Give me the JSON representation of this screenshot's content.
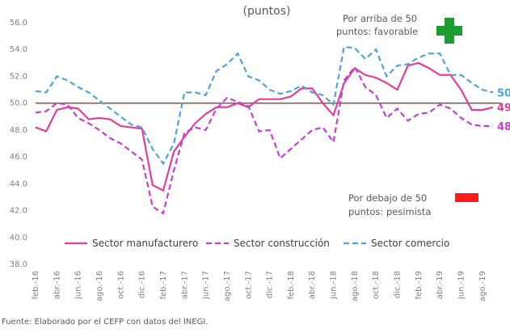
{
  "chart_data": {
    "type": "line",
    "title": "(puntos)",
    "annotations": [
      "Por arriba de 50",
      "puntos: favorable",
      "Por debajo de 50",
      "puntos: pesimista"
    ],
    "source": "Fuente: Elaborado por el CEFP con datos del INEGI.",
    "categories": [
      "feb.-16",
      null,
      "abr.-16",
      null,
      "jun.-16",
      null,
      "ago.-16",
      null,
      "oct.-16",
      null,
      "dic.-16",
      null,
      "feb.-17",
      null,
      "abr.-17",
      null,
      "jun.-17",
      null,
      "ago.-17",
      null,
      "oct.-17",
      null,
      "dic.-17",
      null,
      "feb.-18",
      null,
      "abr.-18",
      null,
      "jun.-18",
      null,
      "ago.-18",
      null,
      "oct.-18",
      null,
      "dic.-18",
      null,
      "feb.-19",
      null,
      "abr.-19",
      null,
      "jun.-19",
      null,
      "ago.-19",
      null
    ],
    "series": [
      {
        "name": "Sector manufacturero",
        "color": "#e23f9a",
        "dash": false,
        "values": [
          48.2,
          47.9,
          49.5,
          49.7,
          49.6,
          48.8,
          48.9,
          48.8,
          48.3,
          48.2,
          48.1,
          43.9,
          43.5,
          46.4,
          47.5,
          48.5,
          49.2,
          49.7,
          49.7,
          50.0,
          49.7,
          50.3,
          50.3,
          50.3,
          50.5,
          51.1,
          51.1,
          50.0,
          49.1,
          51.5,
          52.6,
          52.1,
          51.9,
          51.5,
          51.0,
          52.8,
          53.0,
          52.6,
          52.1,
          52.1,
          51.0,
          49.5,
          49.5,
          49.7
        ]
      },
      {
        "name": "Sector construcción",
        "color": "#c63fd4",
        "dash": true,
        "values": [
          49.3,
          49.4,
          50.0,
          49.9,
          48.9,
          48.5,
          48.0,
          47.4,
          47.0,
          46.4,
          45.8,
          42.3,
          41.8,
          45.0,
          47.8,
          48.2,
          48.0,
          49.6,
          50.4,
          50.1,
          49.8,
          47.9,
          48.0,
          45.9,
          46.6,
          47.3,
          48.0,
          48.2,
          47.1,
          51.7,
          52.7,
          51.2,
          50.6,
          48.9,
          49.6,
          48.7,
          49.2,
          49.3,
          49.9,
          49.6,
          48.9,
          48.4,
          48.3,
          48.3
        ]
      },
      {
        "name": "Sector comercio",
        "color": "#4fa3d9",
        "dash": true,
        "values": [
          50.9,
          50.8,
          52.0,
          51.7,
          51.2,
          50.8,
          50.2,
          49.6,
          49.0,
          48.4,
          48.2,
          46.6,
          45.5,
          47.0,
          50.8,
          50.8,
          50.6,
          52.4,
          52.9,
          53.7,
          52.0,
          51.7,
          51.0,
          50.7,
          50.9,
          51.3,
          50.8,
          50.6,
          49.9,
          54.2,
          54.1,
          53.3,
          54.0,
          52.0,
          52.8,
          52.9,
          53.4,
          53.7,
          53.7,
          52.1,
          52.1,
          51.5,
          51.0,
          50.8
        ]
      }
    ],
    "reference_line": 50,
    "ylim": [
      38,
      56
    ],
    "yticks": [
      {
        "value": 38,
        "label": "38.0"
      },
      {
        "value": 40,
        "label": "40.0"
      },
      {
        "value": 42,
        "label": "42.0"
      },
      {
        "value": 44,
        "label": "44.0"
      },
      {
        "value": 46,
        "label": "46.0"
      },
      {
        "value": 48,
        "label": "48.0"
      },
      {
        "value": 50,
        "label": "50.0"
      },
      {
        "value": 52,
        "label": "52.0"
      },
      {
        "value": 54,
        "label": "54.0"
      },
      {
        "value": 56,
        "label": "56.0"
      }
    ],
    "grid": false
  }
}
